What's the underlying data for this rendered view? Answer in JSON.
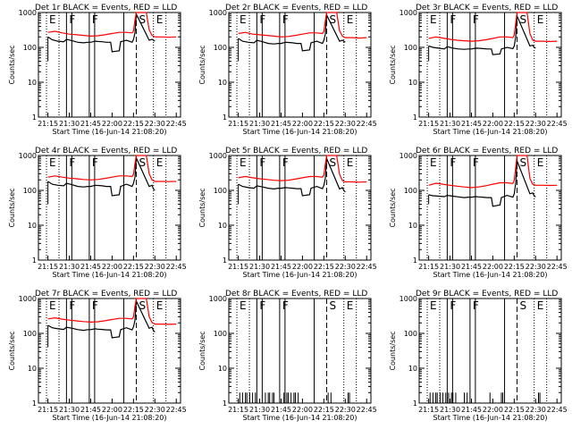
{
  "time_axis": {
    "ticks": [
      "21:15",
      "21:30",
      "21:45",
      "22:00",
      "22:15",
      "22:30",
      "22:45"
    ],
    "xlabel": "Start Time (16-Jun-14 21:08:20)"
  },
  "count_axis": {
    "ylabel": "Counts/sec",
    "ticks": [
      "1",
      "10",
      "100",
      "1000"
    ]
  },
  "colors": {
    "events": "#000000",
    "lld": "#ff0000"
  },
  "event_markers": [
    {
      "label": "E",
      "time": "21:14"
    },
    {
      "label": "F",
      "time": "21:28"
    },
    {
      "label": "F",
      "time": "21:44"
    },
    {
      "label": "S",
      "time": "22:17"
    },
    {
      "label": "E",
      "time": "22:29"
    }
  ],
  "chart_data": [
    {
      "type": "line",
      "title": "Det 1r BLACK = Events, RED = LLD",
      "ylim": [
        1,
        1000
      ],
      "yscale": "log",
      "series": [
        {
          "name": "Events",
          "x": [
            "21:15",
            "21:18",
            "21:22",
            "21:26",
            "21:28",
            "21:32",
            "21:36",
            "21:40",
            "21:43",
            "21:45",
            "21:48",
            "21:50",
            "21:53",
            "21:56",
            "21:59",
            "22:00",
            "22:05",
            "22:06",
            "22:10",
            "22:14",
            "22:15",
            "22:16",
            "22:17",
            "22:26",
            "22:28",
            "22:29",
            "22:30"
          ],
          "values": [
            200,
            165,
            150,
            145,
            170,
            155,
            140,
            135,
            140,
            140,
            150,
            148,
            145,
            140,
            140,
            75,
            80,
            145,
            160,
            140,
            170,
            260,
            900,
            160,
            170,
            160,
            150
          ]
        },
        {
          "name": "LLD",
          "x": [
            "21:15",
            "21:20",
            "21:25",
            "21:30",
            "21:35",
            "21:40",
            "21:45",
            "21:50",
            "21:55",
            "22:00",
            "22:05",
            "22:10",
            "22:14",
            "22:15",
            "22:16",
            "22:17",
            "22:24",
            "22:26",
            "22:28",
            "22:30",
            "22:35",
            "22:40",
            "22:45"
          ],
          "values": [
            270,
            290,
            260,
            240,
            230,
            220,
            210,
            215,
            230,
            250,
            270,
            270,
            260,
            300,
            600,
            1000,
            1000,
            320,
            220,
            200,
            200,
            195,
            200
          ]
        }
      ]
    },
    {
      "type": "line",
      "title": "Det 2r BLACK = Events, RED = LLD",
      "ylim": [
        1,
        1000
      ],
      "yscale": "log",
      "series": [
        {
          "name": "Events",
          "x": [
            "21:15",
            "21:18",
            "21:22",
            "21:26",
            "21:28",
            "21:32",
            "21:36",
            "21:40",
            "21:43",
            "21:45",
            "21:48",
            "21:50",
            "21:53",
            "21:56",
            "21:59",
            "22:00",
            "22:05",
            "22:06",
            "22:10",
            "22:14",
            "22:15",
            "22:16",
            "22:17",
            "22:26",
            "22:28",
            "22:29",
            "22:30"
          ],
          "values": [
            180,
            150,
            140,
            135,
            160,
            145,
            130,
            125,
            130,
            130,
            140,
            138,
            135,
            130,
            130,
            80,
            85,
            135,
            150,
            130,
            160,
            240,
            850,
            150,
            160,
            150,
            140
          ]
        },
        {
          "name": "LLD",
          "x": [
            "21:15",
            "21:20",
            "21:25",
            "21:30",
            "21:35",
            "21:40",
            "21:45",
            "21:50",
            "21:55",
            "22:00",
            "22:05",
            "22:10",
            "22:14",
            "22:15",
            "22:16",
            "22:17",
            "22:24",
            "22:26",
            "22:28",
            "22:30",
            "22:35",
            "22:40",
            "22:45"
          ],
          "values": [
            250,
            270,
            240,
            230,
            220,
            210,
            200,
            205,
            220,
            240,
            260,
            260,
            250,
            290,
            580,
            1000,
            1000,
            300,
            210,
            190,
            190,
            185,
            190
          ]
        }
      ]
    },
    {
      "type": "line",
      "title": "Det 3r BLACK = Events, RED = LLD",
      "ylim": [
        1,
        1000
      ],
      "yscale": "log",
      "series": [
        {
          "name": "Events",
          "x": [
            "21:15",
            "21:18",
            "21:22",
            "21:26",
            "21:28",
            "21:32",
            "21:36",
            "21:40",
            "21:43",
            "21:45",
            "21:48",
            "21:50",
            "21:53",
            "21:56",
            "21:59",
            "22:00",
            "22:05",
            "22:06",
            "22:10",
            "22:14",
            "22:15",
            "22:16",
            "22:17",
            "22:26",
            "22:28",
            "22:29",
            "22:30"
          ],
          "values": [
            110,
            100,
            95,
            90,
            105,
            95,
            90,
            88,
            90,
            90,
            95,
            94,
            92,
            90,
            90,
            62,
            65,
            90,
            100,
            92,
            110,
            200,
            800,
            110,
            115,
            100,
            95
          ]
        },
        {
          "name": "LLD",
          "x": [
            "21:15",
            "21:20",
            "21:25",
            "21:30",
            "21:35",
            "21:40",
            "21:45",
            "21:50",
            "21:55",
            "22:00",
            "22:05",
            "22:10",
            "22:14",
            "22:15",
            "22:16",
            "22:17",
            "22:24",
            "22:26",
            "22:28",
            "22:30",
            "22:35",
            "22:40",
            "22:45"
          ],
          "values": [
            180,
            200,
            185,
            170,
            160,
            155,
            150,
            155,
            165,
            180,
            200,
            200,
            190,
            230,
            500,
            1000,
            1000,
            250,
            160,
            150,
            150,
            148,
            150
          ]
        }
      ]
    },
    {
      "type": "line",
      "title": "Det 4r BLACK = Events, RED = LLD",
      "ylim": [
        1,
        1000
      ],
      "yscale": "log",
      "series": [
        {
          "name": "Events",
          "x": [
            "21:15",
            "21:18",
            "21:22",
            "21:26",
            "21:28",
            "21:32",
            "21:36",
            "21:40",
            "21:43",
            "21:45",
            "21:48",
            "21:50",
            "21:53",
            "21:56",
            "21:59",
            "22:00",
            "22:05",
            "22:06",
            "22:10",
            "22:14",
            "22:15",
            "22:16",
            "22:17",
            "22:26",
            "22:28",
            "22:29",
            "22:30"
          ],
          "values": [
            180,
            150,
            140,
            135,
            160,
            145,
            130,
            125,
            130,
            130,
            140,
            138,
            135,
            130,
            130,
            70,
            75,
            130,
            150,
            130,
            160,
            240,
            850,
            130,
            140,
            110,
            100
          ]
        },
        {
          "name": "LLD",
          "x": [
            "21:15",
            "21:20",
            "21:25",
            "21:30",
            "21:35",
            "21:40",
            "21:45",
            "21:50",
            "21:55",
            "22:00",
            "22:05",
            "22:10",
            "22:14",
            "22:15",
            "22:16",
            "22:17",
            "22:24",
            "22:26",
            "22:28",
            "22:30",
            "22:35",
            "22:40",
            "22:45"
          ],
          "values": [
            240,
            260,
            240,
            225,
            215,
            205,
            200,
            205,
            220,
            240,
            260,
            260,
            250,
            290,
            580,
            1000,
            1000,
            300,
            200,
            180,
            180,
            178,
            180
          ]
        }
      ]
    },
    {
      "type": "line",
      "title": "Det 5r BLACK = Events, RED = LLD",
      "ylim": [
        1,
        1000
      ],
      "yscale": "log",
      "series": [
        {
          "name": "Events",
          "x": [
            "21:15",
            "21:18",
            "21:22",
            "21:26",
            "21:28",
            "21:32",
            "21:36",
            "21:40",
            "21:43",
            "21:45",
            "21:48",
            "21:50",
            "21:53",
            "21:56",
            "21:59",
            "22:00",
            "22:05",
            "22:06",
            "22:10",
            "22:14",
            "22:15",
            "22:16",
            "22:17",
            "22:26",
            "22:28",
            "22:29",
            "22:30"
          ],
          "values": [
            150,
            130,
            120,
            115,
            135,
            125,
            115,
            110,
            115,
            115,
            120,
            118,
            115,
            112,
            112,
            70,
            75,
            115,
            130,
            112,
            140,
            220,
            820,
            110,
            120,
            100,
            90
          ]
        },
        {
          "name": "LLD",
          "x": [
            "21:15",
            "21:20",
            "21:25",
            "21:30",
            "21:35",
            "21:40",
            "21:45",
            "21:50",
            "21:55",
            "22:00",
            "22:05",
            "22:10",
            "22:14",
            "22:15",
            "22:16",
            "22:17",
            "22:24",
            "22:26",
            "22:28",
            "22:30",
            "22:35",
            "22:40",
            "22:45"
          ],
          "values": [
            230,
            250,
            230,
            215,
            205,
            195,
            190,
            195,
            210,
            230,
            250,
            250,
            240,
            280,
            560,
            1000,
            1000,
            290,
            190,
            175,
            175,
            172,
            175
          ]
        }
      ]
    },
    {
      "type": "line",
      "title": "Det 6r BLACK = Events, RED = LLD",
      "ylim": [
        1,
        1000
      ],
      "yscale": "log",
      "series": [
        {
          "name": "Events",
          "x": [
            "21:15",
            "21:18",
            "21:22",
            "21:26",
            "21:28",
            "21:32",
            "21:36",
            "21:40",
            "21:43",
            "21:45",
            "21:48",
            "21:50",
            "21:53",
            "21:56",
            "21:59",
            "22:00",
            "22:05",
            "22:06",
            "22:10",
            "22:14",
            "22:15",
            "22:16",
            "22:17",
            "22:26",
            "22:28",
            "22:29",
            "22:30"
          ],
          "values": [
            75,
            70,
            68,
            66,
            72,
            68,
            65,
            62,
            64,
            64,
            66,
            65,
            64,
            62,
            62,
            35,
            38,
            62,
            72,
            64,
            80,
            160,
            700,
            80,
            85,
            70,
            65
          ]
        },
        {
          "name": "LLD",
          "x": [
            "21:15",
            "21:20",
            "21:25",
            "21:30",
            "21:35",
            "21:40",
            "21:45",
            "21:50",
            "21:55",
            "22:00",
            "22:05",
            "22:10",
            "22:14",
            "22:15",
            "22:16",
            "22:17",
            "22:24",
            "22:26",
            "22:28",
            "22:30",
            "22:35",
            "22:40",
            "22:45"
          ],
          "values": [
            140,
            160,
            150,
            140,
            132,
            125,
            120,
            125,
            135,
            150,
            165,
            165,
            158,
            200,
            450,
            1000,
            1000,
            220,
            150,
            140,
            140,
            138,
            140
          ]
        }
      ]
    },
    {
      "type": "line",
      "title": "Det 7r BLACK = Events, RED = LLD",
      "ylim": [
        1,
        1000
      ],
      "yscale": "log",
      "series": [
        {
          "name": "Events",
          "x": [
            "21:15",
            "21:18",
            "21:22",
            "21:26",
            "21:28",
            "21:32",
            "21:36",
            "21:40",
            "21:43",
            "21:45",
            "21:48",
            "21:50",
            "21:53",
            "21:56",
            "21:59",
            "22:00",
            "22:05",
            "22:06",
            "22:10",
            "22:14",
            "22:15",
            "22:16",
            "22:17",
            "22:26",
            "22:28",
            "22:29",
            "22:30"
          ],
          "values": [
            170,
            145,
            135,
            130,
            150,
            140,
            128,
            122,
            128,
            128,
            135,
            132,
            130,
            126,
            126,
            75,
            80,
            128,
            145,
            126,
            155,
            235,
            840,
            140,
            150,
            120,
            110
          ]
        },
        {
          "name": "LLD",
          "x": [
            "21:15",
            "21:20",
            "21:25",
            "21:30",
            "21:35",
            "21:40",
            "21:45",
            "21:50",
            "21:55",
            "22:00",
            "22:05",
            "22:10",
            "22:14",
            "22:15",
            "22:16",
            "22:17",
            "22:24",
            "22:26",
            "22:28",
            "22:30",
            "22:35",
            "22:40",
            "22:45"
          ],
          "values": [
            260,
            280,
            255,
            240,
            228,
            218,
            210,
            215,
            230,
            250,
            270,
            270,
            258,
            300,
            590,
            1000,
            1000,
            300,
            205,
            185,
            185,
            182,
            185
          ]
        }
      ]
    },
    {
      "type": "line",
      "title": "Det 8r BLACK = Events, RED = LLD",
      "ylim": [
        1,
        1000
      ],
      "yscale": "log",
      "series": [
        {
          "name": "Events",
          "x": [
            "21:16",
            "21:17",
            "21:18",
            "21:19",
            "21:20",
            "21:21",
            "21:22",
            "21:23",
            "21:24",
            "21:25",
            "21:26",
            "21:27",
            "21:34",
            "21:35",
            "21:36",
            "21:37",
            "21:38",
            "21:39",
            "21:40",
            "21:47",
            "21:48",
            "21:49",
            "21:50",
            "21:51",
            "21:52",
            "21:53",
            "21:54",
            "21:55",
            "21:56",
            "21:57",
            "22:18",
            "22:19",
            "22:20",
            "22:32",
            "22:33"
          ],
          "values": [
            2,
            1,
            2,
            1,
            2,
            2,
            1,
            2,
            1,
            2,
            1,
            2,
            2,
            1,
            2,
            2,
            1,
            2,
            2,
            2,
            1,
            2,
            2,
            1,
            2,
            1,
            2,
            2,
            1,
            2,
            2,
            1,
            2,
            2,
            2
          ]
        }
      ]
    },
    {
      "type": "line",
      "title": "Det 9r BLACK = Events, RED = LLD",
      "ylim": [
        1,
        1000
      ],
      "yscale": "log",
      "series": [
        {
          "name": "Events",
          "x": [
            "21:16",
            "21:17",
            "21:18",
            "21:19",
            "21:20",
            "21:21",
            "21:22",
            "21:23",
            "21:24",
            "21:25",
            "21:26",
            "21:27",
            "21:29",
            "21:30",
            "21:31",
            "21:32",
            "21:33",
            "21:34",
            "21:35",
            "21:40",
            "21:41",
            "21:42",
            "21:58",
            "21:59",
            "22:06",
            "22:07",
            "22:32",
            "22:33"
          ],
          "values": [
            2,
            1,
            2,
            1,
            2,
            2,
            1,
            2,
            1,
            2,
            1,
            2,
            2,
            1,
            2,
            2,
            1,
            2,
            1,
            2,
            1,
            2,
            2,
            1,
            2,
            2,
            2,
            2
          ]
        }
      ]
    }
  ]
}
